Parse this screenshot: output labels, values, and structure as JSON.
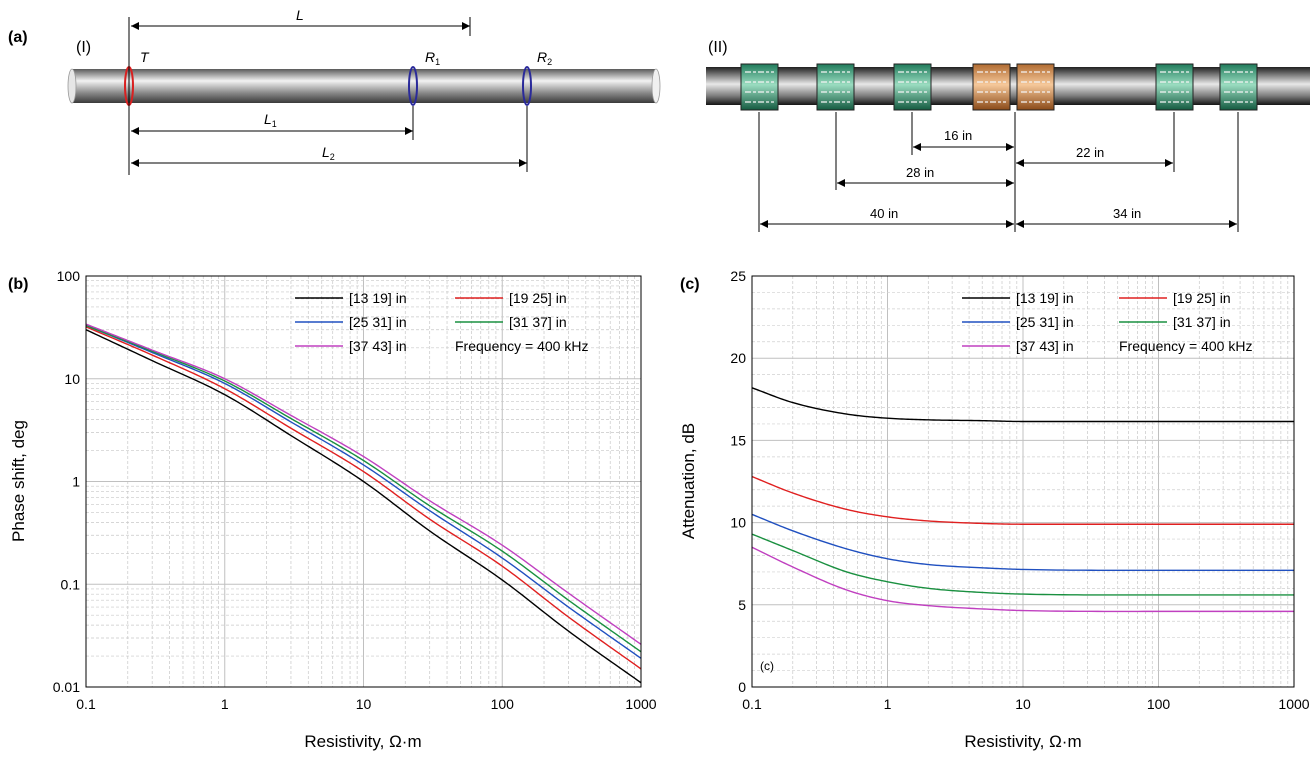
{
  "panel_a": {
    "label": "(a)",
    "sub_I": "(I)",
    "sub_II": "(II)",
    "T": "T",
    "R1_main": "R",
    "R1_sub": "1",
    "R2_main": "R",
    "R2_sub": "2",
    "L": "L",
    "L1_main": "L",
    "L1_sub": "1",
    "L2_main": "L",
    "L2_sub": "2",
    "spacings": [
      "16 in",
      "22 in",
      "28 in",
      "40 in",
      "34 in"
    ],
    "colors": {
      "transmitter": "#d92020",
      "receiver": "#2a2a9a",
      "green_coil": "#2a9a7a",
      "orange_coil": "#e0965a"
    }
  },
  "chart_data": [
    {
      "panel": "(b)",
      "type": "line",
      "xlabel": "Resistivity, Ω·m",
      "ylabel": "Phase shift, deg",
      "xscale": "log",
      "yscale": "log",
      "xlim": [
        0.1,
        1000
      ],
      "ylim": [
        0.01,
        100
      ],
      "xticks": [
        "0.1",
        "1",
        "10",
        "100",
        "1000"
      ],
      "yticks": [
        "0.01",
        "0.1",
        "1",
        "10",
        "100"
      ],
      "grid": true,
      "legend_placement": "top-right",
      "annotation": "Frequency = 400 kHz",
      "x": [
        0.1,
        0.3,
        1,
        3,
        10,
        30,
        100,
        300,
        1000
      ],
      "series": [
        {
          "name": "[13 19] in",
          "color": "#000000",
          "values": [
            30,
            15,
            7,
            2.8,
            1.0,
            0.33,
            0.11,
            0.035,
            0.011
          ]
        },
        {
          "name": "[19 25] in",
          "color": "#e02020",
          "values": [
            32,
            17,
            8,
            3.3,
            1.25,
            0.43,
            0.15,
            0.048,
            0.015
          ]
        },
        {
          "name": "[25 31] in",
          "color": "#2050c0",
          "values": [
            33,
            18,
            9,
            3.8,
            1.45,
            0.52,
            0.18,
            0.06,
            0.019
          ]
        },
        {
          "name": "[31 37] in",
          "color": "#1a9040",
          "values": [
            33,
            18.5,
            9.5,
            4.1,
            1.6,
            0.58,
            0.21,
            0.07,
            0.022
          ]
        },
        {
          "name": "[37 43] in",
          "color": "#c040c0",
          "values": [
            34,
            19,
            10,
            4.4,
            1.75,
            0.65,
            0.24,
            0.082,
            0.026
          ]
        }
      ]
    },
    {
      "panel": "(c)",
      "type": "line",
      "xlabel": "Resistivity, Ω·m",
      "ylabel": "Attenuation, dB",
      "xscale": "log",
      "yscale": "linear",
      "xlim": [
        0.1,
        1000
      ],
      "ylim": [
        0,
        25
      ],
      "xticks": [
        "0.1",
        "1",
        "10",
        "100",
        "1000"
      ],
      "yticks": [
        "0",
        "5",
        "10",
        "15",
        "20",
        "25"
      ],
      "grid": true,
      "legend_placement": "top-right",
      "annotation": "Frequency = 400 kHz",
      "inner_label": "(c)",
      "x": [
        0.1,
        0.2,
        0.5,
        1,
        2,
        5,
        10,
        100,
        1000
      ],
      "series": [
        {
          "name": "[13 19] in",
          "color": "#000000",
          "values": [
            18.2,
            17.3,
            16.6,
            16.35,
            16.25,
            16.2,
            16.15,
            16.15,
            16.15
          ]
        },
        {
          "name": "[19 25] in",
          "color": "#e02020",
          "values": [
            12.8,
            11.8,
            10.8,
            10.35,
            10.1,
            9.95,
            9.9,
            9.9,
            9.9
          ]
        },
        {
          "name": "[25 31] in",
          "color": "#2050c0",
          "values": [
            10.5,
            9.5,
            8.4,
            7.8,
            7.45,
            7.25,
            7.15,
            7.1,
            7.1
          ]
        },
        {
          "name": "[31 37] in",
          "color": "#1a9040",
          "values": [
            9.3,
            8.3,
            7.0,
            6.4,
            6.0,
            5.75,
            5.65,
            5.6,
            5.6
          ]
        },
        {
          "name": "[37 43] in",
          "color": "#c040c0",
          "values": [
            8.5,
            7.3,
            5.9,
            5.25,
            4.95,
            4.75,
            4.65,
            4.6,
            4.6
          ]
        }
      ]
    }
  ]
}
